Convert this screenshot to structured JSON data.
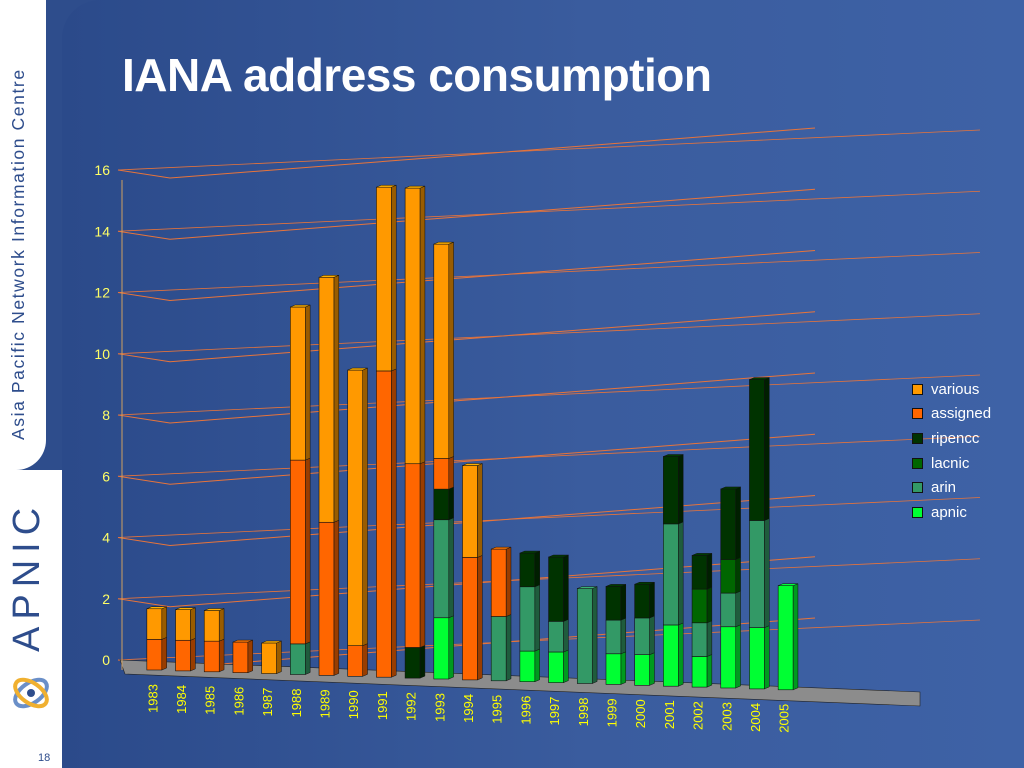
{
  "slide": {
    "title": "IANA address consumption",
    "sidebar_text": "Asia Pacific Network Information Centre",
    "brand": "APNIC",
    "slide_number": "18"
  },
  "colors": {
    "background": "#2e4d8c",
    "various": "#ff9900",
    "assigned": "#ff6600",
    "ripencc": "#003300",
    "lacnic": "#006600",
    "arin": "#339966",
    "apnic": "#00ff33",
    "gridline": "#e8743a"
  },
  "chart_data": {
    "type": "bar",
    "stacked": true,
    "three_d": true,
    "title": "",
    "ylabel": "",
    "xlabel": "",
    "ylim": [
      0,
      16
    ],
    "yticks": [
      0,
      2,
      4,
      6,
      8,
      10,
      12,
      14,
      16
    ],
    "grid": true,
    "legend_position": "right",
    "categories": [
      "1983",
      "1984",
      "1985",
      "1986",
      "1987",
      "1988",
      "1989",
      "1990",
      "1991",
      "1992",
      "1993",
      "1994",
      "1995",
      "1996",
      "1997",
      "1998",
      "1999",
      "2000",
      "2001",
      "2002",
      "2003",
      "2004",
      "2005"
    ],
    "series": [
      {
        "name": "apnic",
        "color": "#00ff33",
        "values": [
          0,
          0,
          0,
          0,
          0,
          0,
          0,
          0,
          0,
          0,
          2,
          0,
          0,
          1,
          1,
          0,
          1,
          1,
          2,
          1,
          2,
          2,
          3.4
        ]
      },
      {
        "name": "arin",
        "color": "#339966",
        "values": [
          0,
          0,
          0,
          0,
          0,
          1,
          0,
          0,
          0,
          0,
          3.2,
          0,
          2.1,
          2.1,
          1,
          3.1,
          1.1,
          1.2,
          3.3,
          1.1,
          1.1,
          3.5,
          0
        ]
      },
      {
        "name": "lacnic",
        "color": "#006600",
        "values": [
          0,
          0,
          0,
          0,
          0,
          0,
          0,
          0,
          0,
          0,
          0,
          0,
          0,
          0,
          0,
          0,
          0,
          0,
          0,
          1.1,
          1.1,
          0,
          0
        ]
      },
      {
        "name": "ripencc",
        "color": "#003300",
        "values": [
          0,
          0,
          0,
          0,
          0,
          0,
          0,
          0,
          0,
          1,
          1,
          0,
          0,
          1.1,
          2.1,
          0,
          1.1,
          1.1,
          2.2,
          1.1,
          2.3,
          4.6,
          0
        ]
      },
      {
        "name": "assigned",
        "color": "#ff6600",
        "values": [
          1,
          1,
          1,
          1,
          0,
          6,
          5,
          1,
          10,
          6,
          1,
          4,
          2.2,
          0,
          0,
          0,
          0,
          0,
          0,
          0,
          0,
          0,
          0
        ]
      },
      {
        "name": "various",
        "color": "#ff9900",
        "values": [
          1,
          1,
          1,
          0,
          1,
          5,
          8,
          9,
          6,
          9,
          7,
          3,
          0,
          0,
          0,
          0,
          0,
          0,
          0,
          0,
          0,
          0,
          0
        ]
      }
    ]
  }
}
